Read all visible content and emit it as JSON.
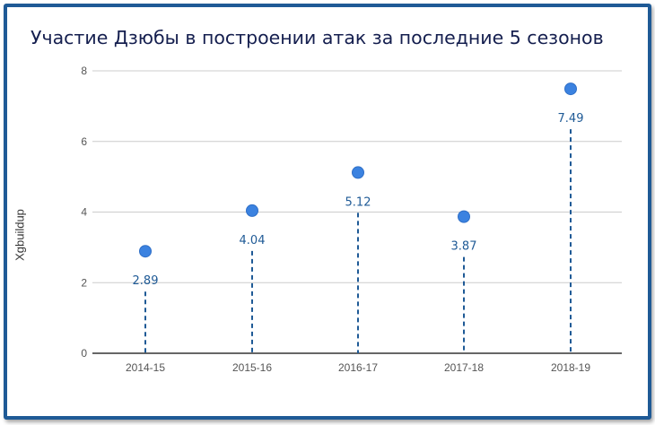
{
  "chart_data": {
    "type": "scatter",
    "title": "Участие Дзюбы в построении атак за последние 5 сезонов",
    "xlabel": "",
    "ylabel": "Xgbuildup",
    "categories": [
      "2014-15",
      "2015-16",
      "2016-17",
      "2017-18",
      "2018-19"
    ],
    "values": [
      2.89,
      4.04,
      5.12,
      3.87,
      7.49
    ],
    "data_labels": [
      "2.89",
      "4.04",
      "5.12",
      "3.87",
      "7.49"
    ],
    "ylim": [
      0,
      8
    ],
    "yticks": [
      "0",
      "2",
      "4",
      "6",
      "8"
    ],
    "grid": true,
    "legend": "none",
    "colors": {
      "frame": "#1f5a96",
      "marker": "#3b82e0",
      "stem": "#1f5a96",
      "label": "#1f5a96",
      "grid": "#cccccc"
    }
  }
}
